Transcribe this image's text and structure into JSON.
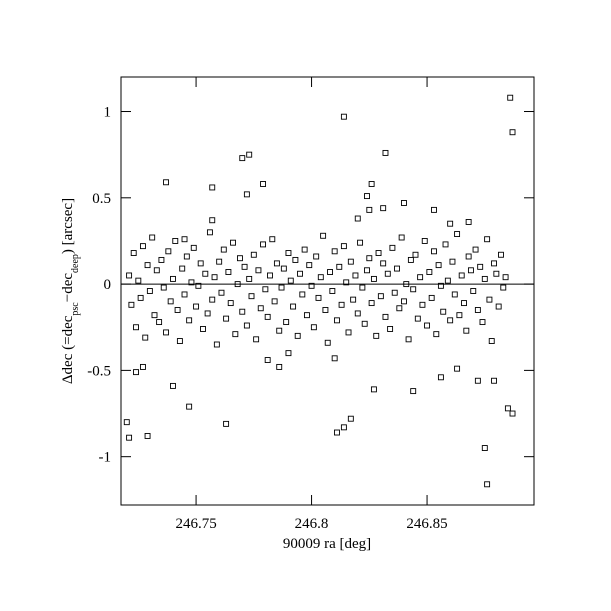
{
  "chart_data": {
    "type": "scatter",
    "xlabel": "90009 ra [deg]",
    "ylabel_parts": [
      {
        "text": "Δdec (=dec"
      },
      {
        "text": "psc",
        "sub": true
      },
      {
        "text": "−dec"
      },
      {
        "text": "deep",
        "sub": true
      },
      {
        "text": ") [arcsec]"
      }
    ],
    "xlim": [
      246.7175,
      246.8963
    ],
    "ylim": [
      -1.28,
      1.2
    ],
    "xticks": [
      246.75,
      246.8,
      246.85
    ],
    "yticks": [
      -1,
      -0.5,
      0,
      0.5,
      1
    ],
    "hline": 0,
    "color": "#000000",
    "x": [
      246.721,
      246.722,
      246.723,
      246.724,
      246.725,
      246.726,
      246.727,
      246.728,
      246.729,
      246.73,
      246.731,
      246.732,
      246.733,
      246.734,
      246.735,
      246.736,
      246.737,
      246.738,
      246.739,
      246.74,
      246.741,
      246.742,
      246.743,
      246.744,
      246.745,
      246.746,
      246.747,
      246.748,
      246.749,
      246.75,
      246.751,
      246.752,
      246.753,
      246.754,
      246.755,
      246.756,
      246.757,
      246.758,
      246.759,
      246.76,
      246.761,
      246.762,
      246.763,
      246.764,
      246.765,
      246.766,
      246.767,
      246.768,
      246.769,
      246.77,
      246.771,
      246.772,
      246.773,
      246.774,
      246.775,
      246.776,
      246.777,
      246.778,
      246.779,
      246.78,
      246.781,
      246.782,
      246.783,
      246.784,
      246.785,
      246.786,
      246.787,
      246.788,
      246.789,
      246.79,
      246.791,
      246.792,
      246.793,
      246.794,
      246.795,
      246.796,
      246.797,
      246.798,
      246.799,
      246.8,
      246.801,
      246.802,
      246.803,
      246.804,
      246.805,
      246.806,
      246.807,
      246.808,
      246.809,
      246.81,
      246.811,
      246.812,
      246.813,
      246.814,
      246.815,
      246.816,
      246.817,
      246.818,
      246.819,
      246.82,
      246.821,
      246.822,
      246.823,
      246.824,
      246.825,
      246.826,
      246.827,
      246.828,
      246.829,
      246.83,
      246.831,
      246.832,
      246.833,
      246.834,
      246.835,
      246.836,
      246.837,
      246.838,
      246.839,
      246.84,
      246.841,
      246.842,
      246.843,
      246.844,
      246.845,
      246.846,
      246.847,
      246.848,
      246.849,
      246.85,
      246.851,
      246.852,
      246.853,
      246.854,
      246.855,
      246.856,
      246.857,
      246.858,
      246.859,
      246.86,
      246.861,
      246.862,
      246.863,
      246.864,
      246.865,
      246.866,
      246.867,
      246.868,
      246.869,
      246.87,
      246.871,
      246.872,
      246.873,
      246.874,
      246.875,
      246.876,
      246.877,
      246.878,
      246.879,
      246.88,
      246.881,
      246.882,
      246.883,
      246.884,
      246.886,
      246.887,
      246.814,
      246.77,
      246.773,
      246.832,
      246.737,
      246.757,
      246.779,
      246.772,
      246.826,
      246.824,
      246.825,
      246.831,
      246.84,
      246.853,
      246.82,
      246.757,
      246.72,
      246.721,
      246.729,
      246.763,
      246.811,
      246.814,
      246.817,
      246.747,
      246.74,
      246.827,
      246.844,
      246.856,
      246.863,
      246.872,
      246.879,
      246.875,
      246.876,
      246.885,
      246.887,
      246.724,
      246.727,
      246.781,
      246.786,
      246.81,
      246.86,
      246.868,
      246.745,
      246.79
    ],
    "values": [
      0.05,
      -0.12,
      0.18,
      -0.25,
      0.02,
      -0.08,
      0.22,
      -0.31,
      0.11,
      -0.04,
      0.27,
      -0.18,
      0.08,
      -0.22,
      0.14,
      -0.02,
      -0.28,
      0.19,
      -0.1,
      0.03,
      0.25,
      -0.15,
      -0.33,
      0.09,
      -0.06,
      0.16,
      -0.21,
      0.01,
      0.21,
      -0.13,
      -0.01,
      0.12,
      -0.26,
      0.06,
      -0.17,
      0.3,
      -0.09,
      0.04,
      -0.35,
      0.13,
      -0.05,
      0.2,
      -0.2,
      0.07,
      -0.11,
      0.24,
      -0.29,
      0.0,
      0.15,
      -0.16,
      0.1,
      -0.24,
      0.03,
      -0.07,
      0.17,
      -0.32,
      0.08,
      -0.14,
      0.23,
      -0.03,
      -0.19,
      0.05,
      0.26,
      -0.1,
      0.12,
      -0.27,
      -0.02,
      0.09,
      -0.22,
      0.18,
      0.02,
      -0.13,
      0.14,
      -0.3,
      0.06,
      -0.06,
      0.2,
      -0.18,
      0.11,
      -0.01,
      -0.25,
      0.16,
      -0.08,
      0.04,
      0.28,
      -0.15,
      -0.34,
      0.07,
      -0.04,
      0.19,
      -0.21,
      0.1,
      -0.12,
      0.22,
      0.01,
      -0.28,
      0.13,
      -0.09,
      0.05,
      -0.17,
      0.24,
      -0.02,
      -0.23,
      0.08,
      0.15,
      -0.11,
      0.03,
      -0.3,
      0.18,
      -0.07,
      0.12,
      -0.19,
      0.06,
      -0.26,
      0.21,
      -0.05,
      0.09,
      -0.14,
      0.27,
      -0.1,
      0.0,
      -0.32,
      0.14,
      -0.03,
      0.17,
      -0.2,
      0.04,
      -0.12,
      0.25,
      -0.24,
      0.07,
      -0.08,
      0.19,
      -0.29,
      0.11,
      -0.01,
      -0.16,
      0.23,
      0.02,
      -0.21,
      0.13,
      -0.06,
      0.29,
      -0.18,
      0.05,
      -0.11,
      -0.27,
      0.16,
      0.08,
      -0.04,
      0.2,
      -0.15,
      0.1,
      -0.22,
      0.03,
      0.26,
      -0.09,
      -0.33,
      0.12,
      0.06,
      -0.13,
      0.17,
      -0.02,
      0.04,
      1.08,
      0.88,
      0.97,
      0.73,
      0.75,
      0.76,
      0.59,
      0.56,
      0.58,
      0.52,
      0.58,
      0.51,
      0.43,
      0.44,
      0.47,
      0.43,
      0.38,
      0.37,
      -0.8,
      -0.89,
      -0.88,
      -0.81,
      -0.86,
      -0.83,
      -0.78,
      -0.71,
      -0.59,
      -0.61,
      -0.62,
      -0.54,
      -0.49,
      -0.56,
      -0.56,
      -0.95,
      -1.16,
      -0.72,
      -0.75,
      -0.51,
      -0.48,
      -0.44,
      -0.48,
      -0.43,
      0.35,
      0.36,
      0.26,
      -0.4
    ]
  }
}
